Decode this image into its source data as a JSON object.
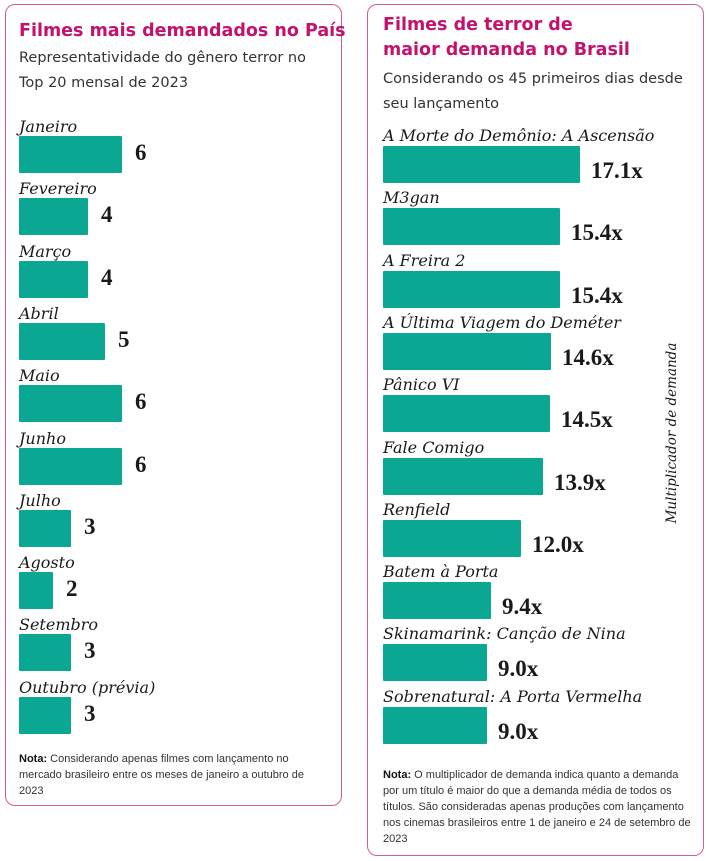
{
  "chart_data": [
    {
      "type": "bar",
      "orientation": "horizontal",
      "title": "Filmes mais demandados no País",
      "subtitle": "Representatividade do gênero terror no Top 20 mensal de 2023",
      "categories": [
        "Janeiro",
        "Fevereiro",
        "Março",
        "Abril",
        "Maio",
        "Junho",
        "Julho",
        "Agosto",
        "Setembro",
        "Outubro (prévia)"
      ],
      "values": [
        6,
        4,
        4,
        5,
        6,
        6,
        3,
        2,
        3,
        3
      ],
      "value_labels": [
        "6",
        "4",
        "4",
        "5",
        "6",
        "6",
        "3",
        "2",
        "3",
        "3"
      ],
      "bar_color": "#0aa793",
      "note_label": "Nota:",
      "note_text": " Considerando apenas filmes com lançamento no mercado brasileiro entre os meses de janeiro a outubro de 2023"
    },
    {
      "type": "bar",
      "orientation": "horizontal",
      "title": "Filmes de terror de maior demanda no Brasil",
      "subtitle": "Considerando os 45 primeiros dias desde seu lançamento",
      "axis_label": "Multiplicador de demanda",
      "categories": [
        "A Morte do Demônio: A Ascensão",
        "M3gan",
        "A Freira 2",
        "A Última Viagem do Deméter",
        "Pânico VI",
        "Fale Comigo",
        "Renfield",
        "Batem à Porta",
        "Skinamarink: Canção de Nina",
        "Sobrenatural: A Porta Vermelha"
      ],
      "values": [
        17.1,
        15.4,
        15.4,
        14.6,
        14.5,
        13.9,
        12.0,
        9.4,
        9.0,
        9.0
      ],
      "value_labels": [
        "17.1x",
        "15.4x",
        "15.4x",
        "14.6x",
        "14.5x",
        "13.9x",
        "12.0x",
        "9.4x",
        "9.0x",
        "9.0x"
      ],
      "bar_color": "#0aa793",
      "note_label": "Nota:",
      "note_text": " O multiplicador de demanda indica quanto a demanda por um título é maior do que a demanda média de todos os títulos. São consideradas apenas produções com lançamento nos cinemas brasileiros entre 1 de janeiro e 24 de setembro de 2023"
    }
  ],
  "colors": {
    "title": "#c2126e",
    "border": "#d65a97",
    "bar": "#0aa793"
  }
}
